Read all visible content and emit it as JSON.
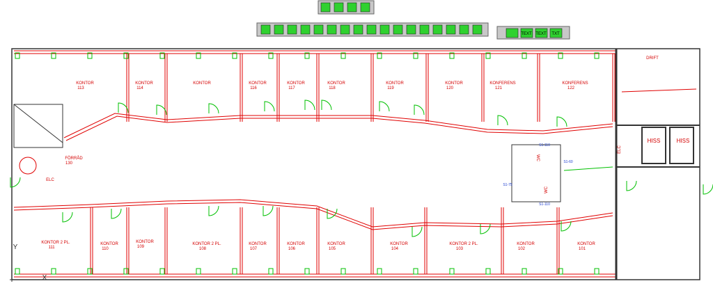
{
  "toolbars": {
    "text_buttons": [
      "TEXT",
      "TEXT",
      "TXT"
    ]
  },
  "rooms_top": [
    {
      "name": "KONTOR",
      "number": "113"
    },
    {
      "name": "KONTOR",
      "number": "114"
    },
    {
      "name": "KONTOR"
    },
    {
      "name": "KONTOR",
      "number": "116"
    },
    {
      "name": "KONTOR",
      "number": "117"
    },
    {
      "name": "KONTOR",
      "number": "118"
    },
    {
      "name": "KONTOR",
      "number": "119"
    },
    {
      "name": "KONTOR",
      "number": "120"
    },
    {
      "name": "KONFERENS",
      "number": "121"
    },
    {
      "name": "KONFERENS",
      "number": "122"
    }
  ],
  "rooms_bottom": [
    {
      "name": "KONTOR 2 PL.",
      "number": "111"
    },
    {
      "name": "KONTOR",
      "number": "110"
    },
    {
      "name": "KONTOR",
      "number": "109"
    },
    {
      "name": "KONTOR 2 PL.",
      "number": "108"
    },
    {
      "name": "KONTOR",
      "number": "107"
    },
    {
      "name": "KONTOR",
      "number": "106"
    },
    {
      "name": "KONTOR",
      "number": "105"
    },
    {
      "name": "KONTOR",
      "number": "104"
    },
    {
      "name": "KONTOR 2 PL.",
      "number": "103"
    },
    {
      "name": "KONTOR",
      "number": "102"
    },
    {
      "name": "KONTOR",
      "number": "101"
    }
  ],
  "other_rooms": {
    "drift": "DRIFT",
    "storage": {
      "name": "FÖRRÅD",
      "number": "130"
    },
    "elc_left": "ELC",
    "elc_right": "ELC",
    "lift_1": "HISS",
    "lift_2": "HISS"
  },
  "wc_labels": [
    "S1-110",
    "S1-60",
    "S1-75",
    "S1-110",
    "WC",
    "WC"
  ],
  "axes": {
    "y": "Y",
    "x": "X"
  }
}
